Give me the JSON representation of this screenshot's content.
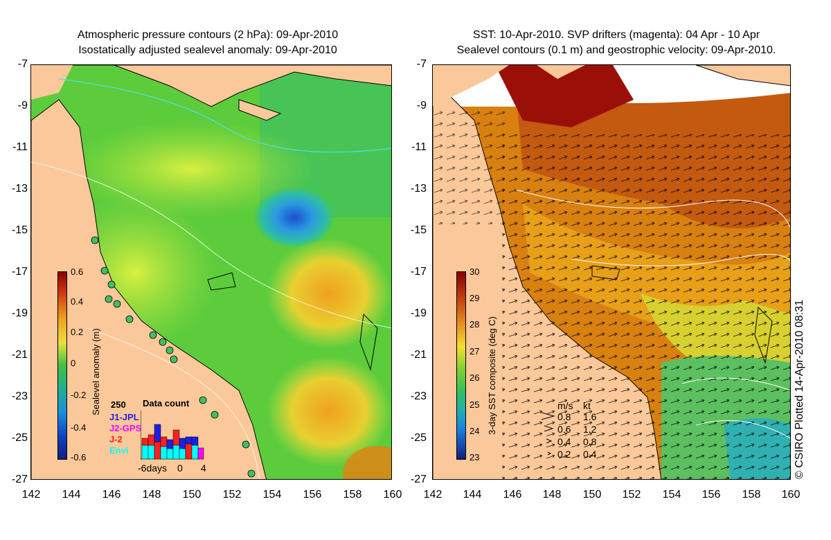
{
  "left_panel": {
    "title_line1": "Atmospheric pressure contours (2 hPa): 09-Apr-2010",
    "title_line2": "Isostatically adjusted sealevel anomaly: 09-Apr-2010",
    "colorbar": {
      "label": "Sealevel anomaly (m)",
      "ticks": [
        "0.6",
        "0.4",
        "0.2",
        "0",
        "-0.2",
        "-0.4",
        "-0.6"
      ]
    },
    "data_count": {
      "title": "Data count",
      "max_label": "250",
      "satellites": [
        {
          "name": "J1-JPL",
          "color": "#2020e0"
        },
        {
          "name": "J2-GPS",
          "color": "#ff00ff"
        },
        {
          "name": "J-2",
          "color": "#ff2020"
        },
        {
          "name": "Envi",
          "color": "#00ffff"
        }
      ],
      "axis_labels": [
        "-6days",
        "0",
        "4"
      ]
    }
  },
  "right_panel": {
    "title_line1": "SST: 10-Apr-2010. SVP drifters (magenta): 04 Apr - 10 Apr",
    "title_line2": "Sealevel contours (0.1 m) and geostrophic velocity: 09-Apr-2010.",
    "colorbar": {
      "label": "3-day SST composite (deg C)",
      "ticks": [
        "30",
        "29",
        "28",
        "27",
        "26",
        "25",
        "24",
        "23"
      ]
    },
    "velocity_legend": {
      "header_ms": "m/s",
      "header_kt": "kt",
      "rows": [
        {
          "ms": "0.8",
          "kt": "1.6"
        },
        {
          "ms": "0.6",
          "kt": "1.2"
        },
        {
          "ms": "0.4",
          "kt": "0.8"
        },
        {
          "ms": "0.2",
          "kt": "0.4"
        }
      ]
    }
  },
  "axes": {
    "y_ticks": [
      "-7",
      "-9",
      "-11",
      "-13",
      "-15",
      "-17",
      "-19",
      "-21",
      "-23",
      "-25",
      "-27"
    ],
    "x_ticks": [
      "142",
      "144",
      "146",
      "148",
      "150",
      "152",
      "154",
      "156",
      "158",
      "160"
    ]
  },
  "copyright": "© CSIRO Plotted 14-Apr-2010 08:31",
  "colors": {
    "land": "#fbc89a",
    "ocean_green": "#6ed43c",
    "sst_warm": "#c8600c"
  }
}
